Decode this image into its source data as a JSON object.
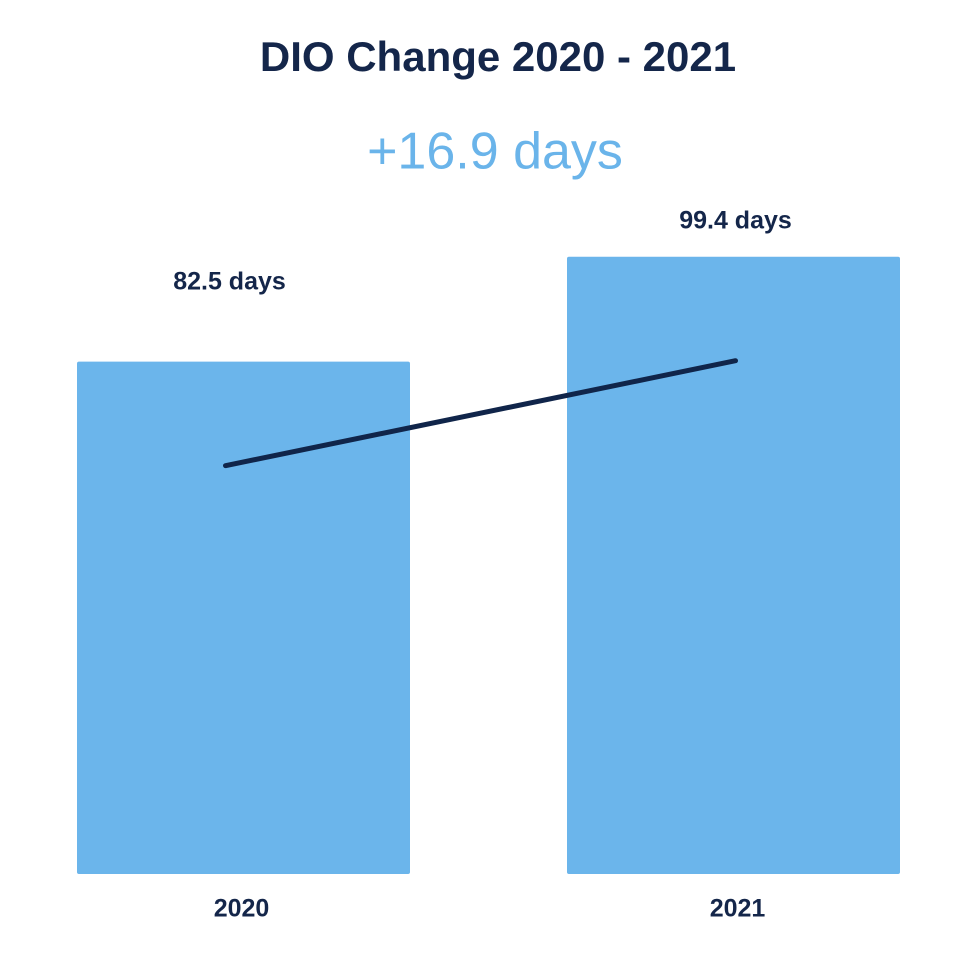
{
  "chart_data": {
    "type": "bar",
    "title": "DIO Change 2020 - 2021",
    "subtitle": "+16.9 days",
    "categories": [
      "2020",
      "2021"
    ],
    "values": [
      82.5,
      99.4
    ],
    "value_labels": [
      "82.5 days",
      "99.4 days"
    ],
    "color": "#6bb5eb",
    "line_color": "#10254a",
    "ylim": [
      0,
      100
    ]
  }
}
